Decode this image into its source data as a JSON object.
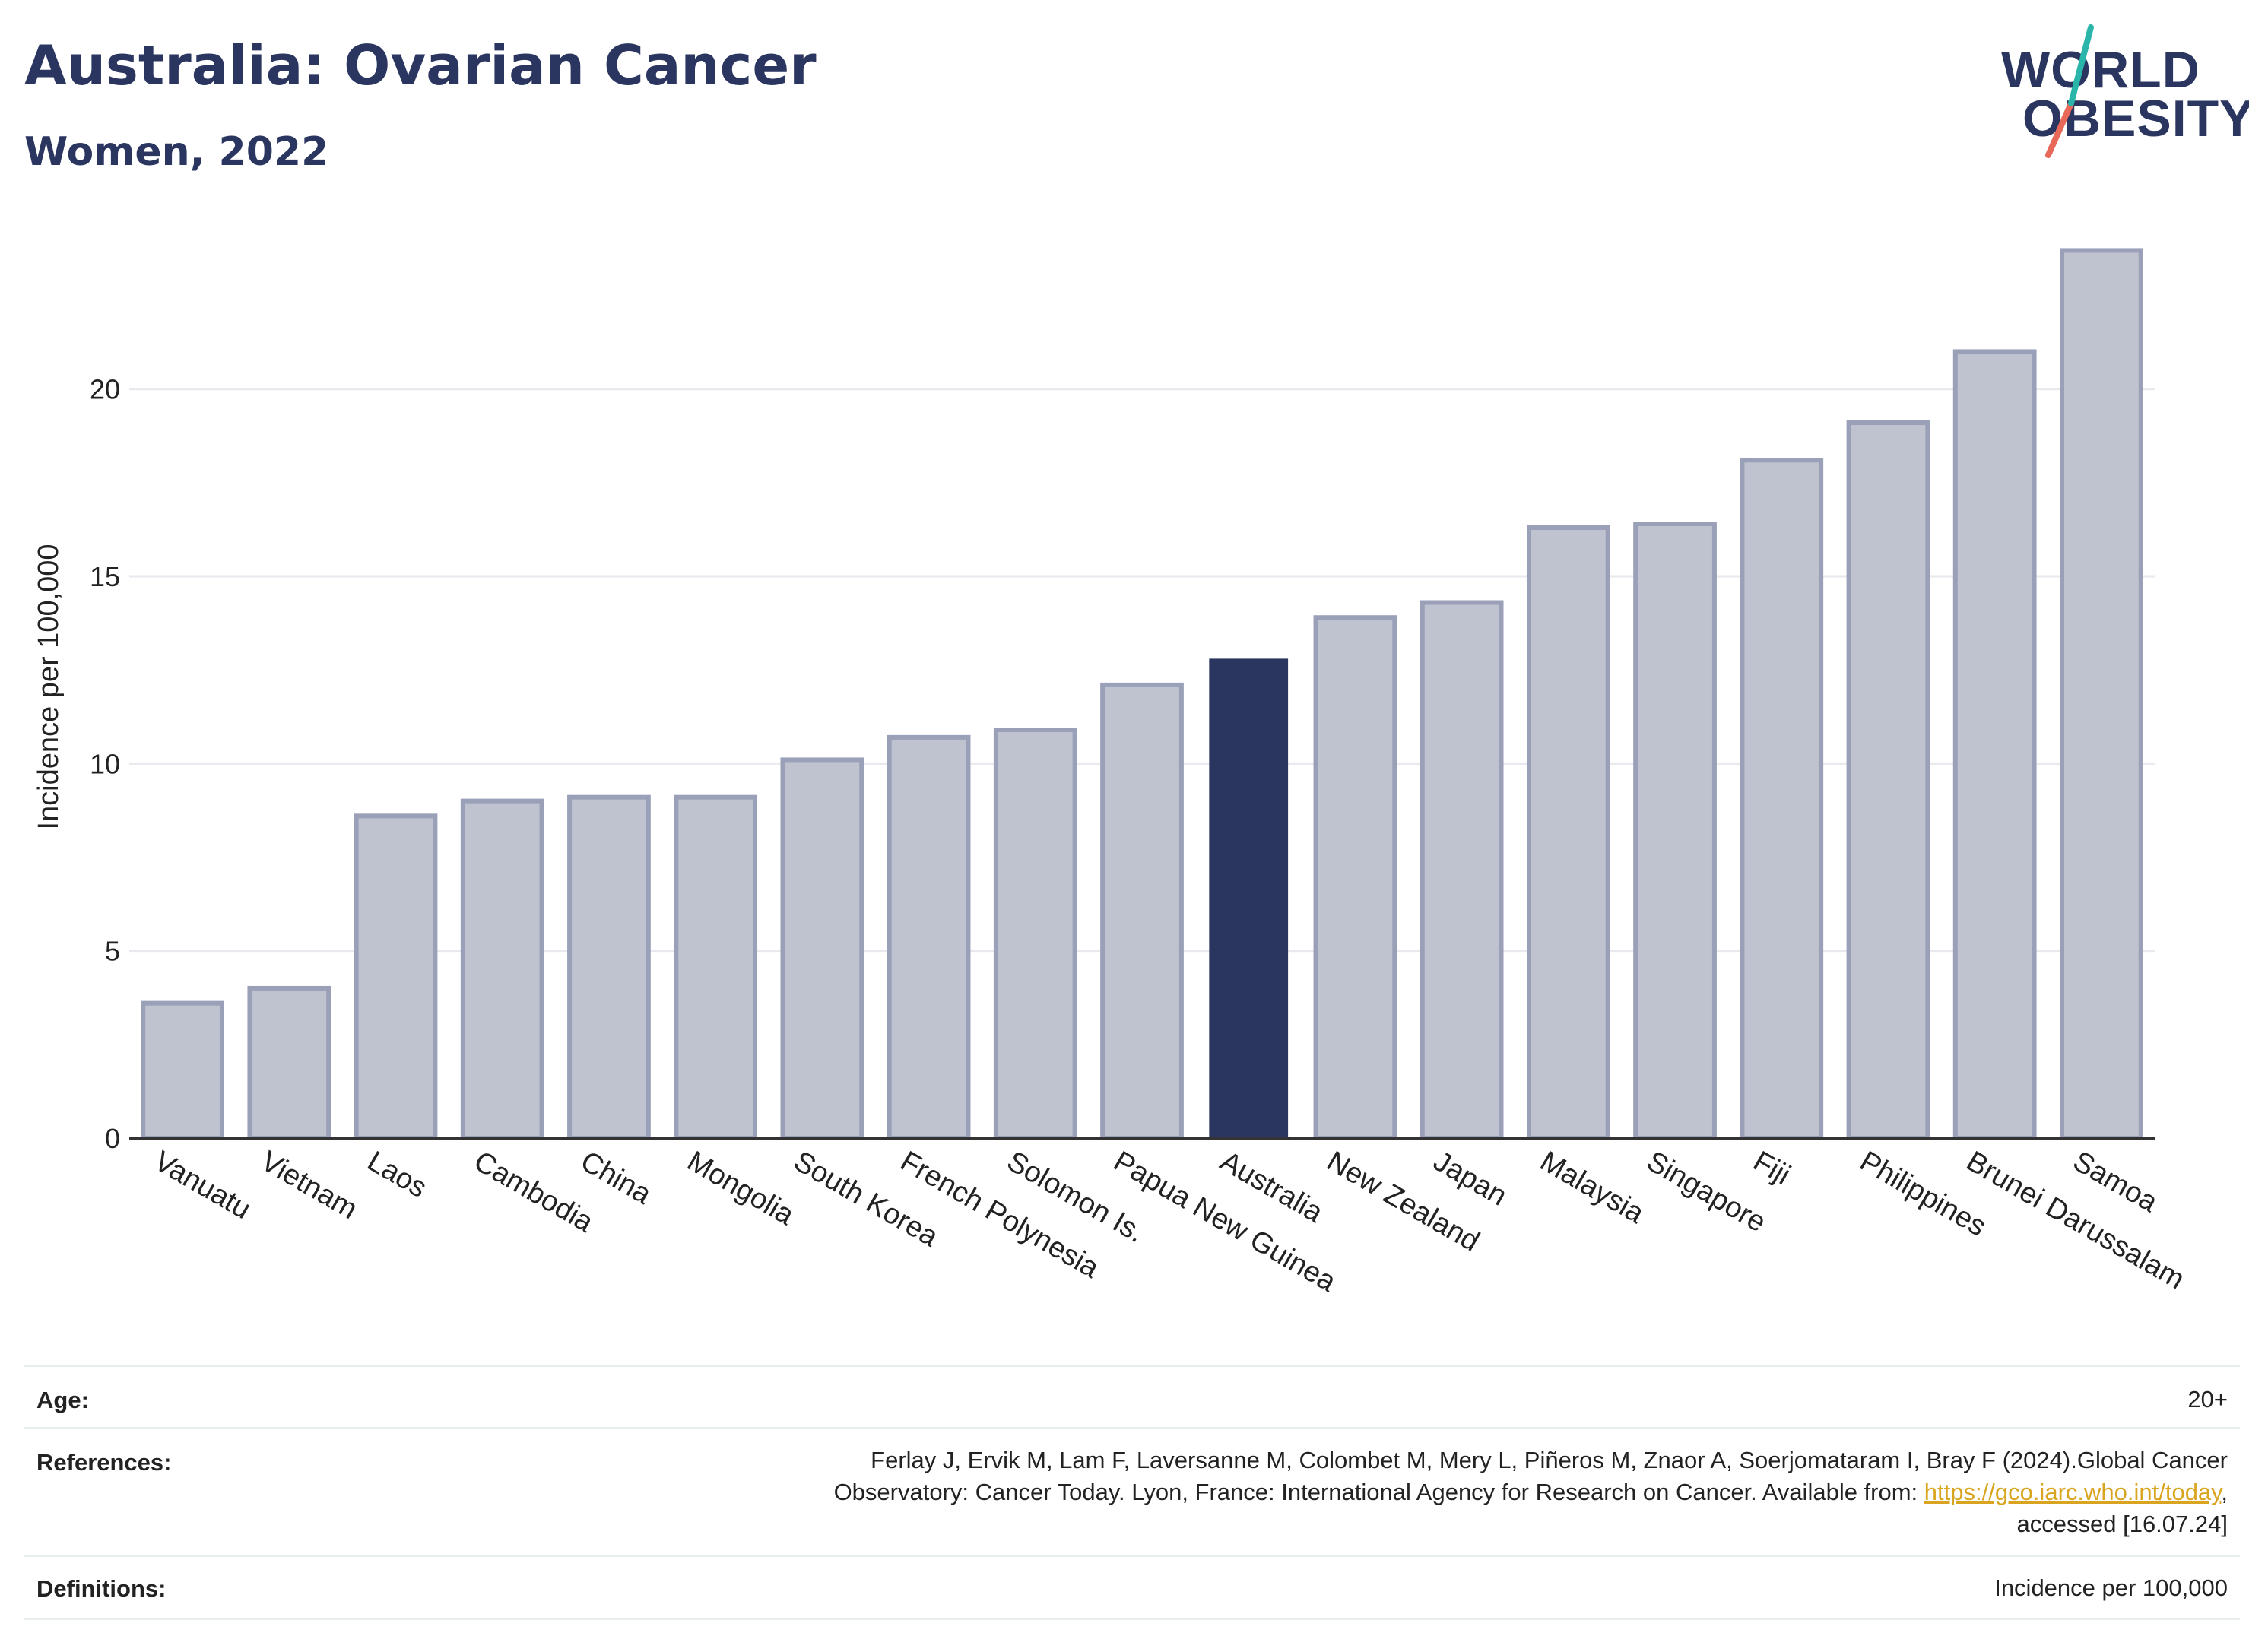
{
  "header": {
    "title": "Australia: Ovarian Cancer",
    "subtitle": "Women, 2022"
  },
  "logo": {
    "line1": "WORLD",
    "line2": "OBESITY",
    "slash_colors": [
      "#2ab5aa",
      "#e8685a"
    ]
  },
  "colors": {
    "bar_default": "#bfc2cf",
    "bar_border": "#9aa0b8",
    "bar_highlight": "#2a3560",
    "grid": "#e8e8ee",
    "axis": "#333333",
    "link": "#d9a520"
  },
  "chart_data": {
    "type": "bar",
    "ylabel": "Incidence per 100,000",
    "ylim": [
      0,
      24.5
    ],
    "yticks": [
      0,
      5,
      10,
      15,
      20
    ],
    "grid": true,
    "highlight": "Australia",
    "categories": [
      "Vanuatu",
      "Vietnam",
      "Laos",
      "Cambodia",
      "China",
      "Mongolia",
      "South Korea",
      "French Polynesia",
      "Solomon Is.",
      "Papua New Guinea",
      "Australia",
      "New Zealand",
      "Japan",
      "Malaysia",
      "Singapore",
      "Fiji",
      "Philippines",
      "Brunei Darussalam",
      "Samoa"
    ],
    "values": [
      3.6,
      4.0,
      8.6,
      9.0,
      9.1,
      9.1,
      10.1,
      10.7,
      10.9,
      12.1,
      12.8,
      13.9,
      14.3,
      16.3,
      16.4,
      18.1,
      19.1,
      21.0,
      23.7
    ]
  },
  "meta": {
    "age_label": "Age:",
    "age_value": "20+",
    "references_label": "References:",
    "references_line1": "Ferlay J, Ervik M, Lam F, Laversanne M, Colombet M, Mery L, Piñeros M, Znaor A, Soerjomataram I, Bray F (2024).Global Cancer",
    "references_line2_prefix": "Observatory: Cancer Today. Lyon, France: International Agency for Research on Cancer. Available from: ",
    "references_link": "https://gco.iarc.who.int/today",
    "references_line2_suffix": ",",
    "references_line3": "accessed [16.07.24]",
    "definitions_label": "Definitions:",
    "definitions_value": "Incidence per 100,000"
  }
}
